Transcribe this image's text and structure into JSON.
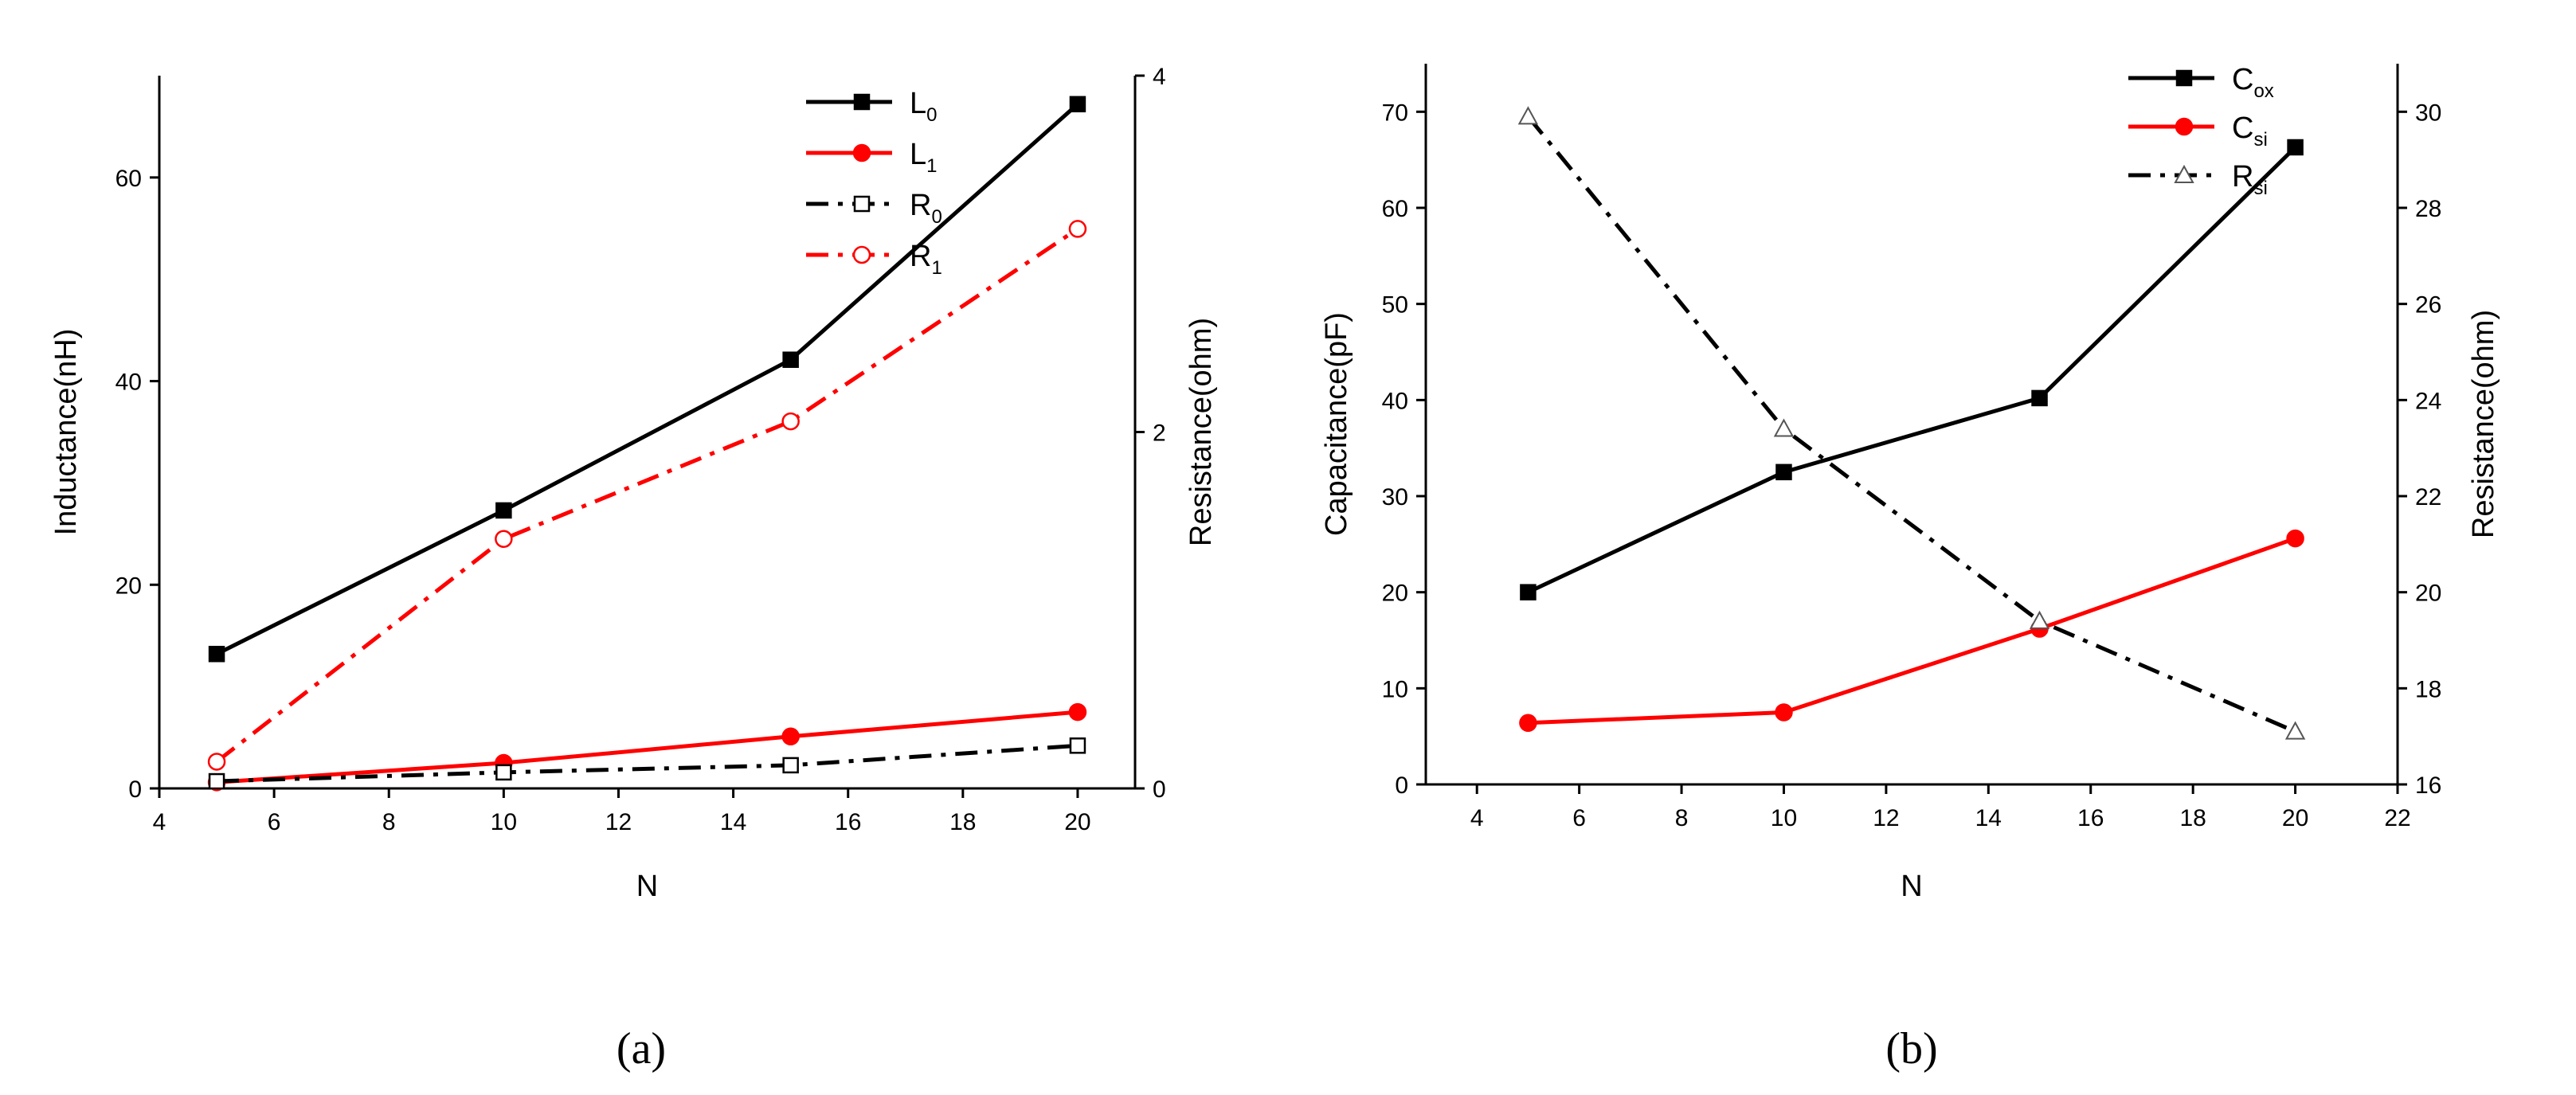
{
  "chart_data": [
    {
      "type": "line",
      "panel_label": "(a)",
      "xlabel": "N",
      "ylabel_left": "Inductance(nH)",
      "ylabel_right": "Resistance(ohm)",
      "xlim": [
        4,
        21
      ],
      "ylim_left": [
        0,
        70
      ],
      "ylim_right": [
        0,
        4
      ],
      "xticks": [
        4,
        6,
        8,
        10,
        12,
        14,
        16,
        18,
        20
      ],
      "yticks_left": [
        0,
        20,
        40,
        60
      ],
      "yticks_right": [
        0,
        2,
        4
      ],
      "x": [
        5,
        10,
        15,
        20
      ],
      "series": [
        {
          "name": "L",
          "sub": "0",
          "axis": "left",
          "color": "#000000",
          "dash": "solid",
          "marker": "square-filled",
          "values": [
            13.2,
            27.3,
            42.1,
            67.2
          ]
        },
        {
          "name": "L",
          "sub": "1",
          "axis": "left",
          "color": "#ff0000",
          "dash": "solid",
          "marker": "circle-filled",
          "values": [
            0.6,
            2.5,
            5.1,
            7.5
          ]
        },
        {
          "name": "R",
          "sub": "0",
          "axis": "right",
          "color": "#000000",
          "dash": "dashdot",
          "marker": "square-open",
          "values": [
            0.04,
            0.09,
            0.13,
            0.24
          ]
        },
        {
          "name": "R",
          "sub": "1",
          "axis": "right",
          "color": "#ff0000",
          "dash": "dashdot",
          "marker": "circle-open",
          "values": [
            0.15,
            1.4,
            2.06,
            3.14
          ]
        }
      ]
    },
    {
      "type": "line",
      "panel_label": "(b)",
      "xlabel": "N",
      "ylabel_left": "Capacitance(pF)",
      "ylabel_right": "Resistance(ohm)",
      "xlim": [
        3,
        22
      ],
      "ylim_left": [
        0,
        75
      ],
      "ylim_right": [
        16,
        31
      ],
      "xticks": [
        4,
        6,
        8,
        10,
        12,
        14,
        16,
        18,
        20,
        22
      ],
      "yticks_left": [
        0,
        10,
        20,
        30,
        40,
        50,
        60,
        70
      ],
      "yticks_right": [
        16,
        18,
        20,
        22,
        24,
        26,
        28,
        30
      ],
      "x": [
        5,
        10,
        15,
        20
      ],
      "series": [
        {
          "name": "C",
          "sub": "ox",
          "axis": "left",
          "color": "#000000",
          "dash": "solid",
          "marker": "square-filled",
          "values": [
            20,
            32.5,
            40.2,
            66.3
          ]
        },
        {
          "name": "C",
          "sub": "si",
          "axis": "left",
          "color": "#ff0000",
          "dash": "solid",
          "marker": "circle-filled",
          "values": [
            6.4,
            7.5,
            16.2,
            25.6
          ]
        },
        {
          "name": "R",
          "sub": "si",
          "axis": "right",
          "color": "#000000",
          "dash": "dashdot",
          "marker": "triangle-open",
          "values": [
            29.9,
            23.4,
            19.4,
            17.1
          ]
        }
      ]
    }
  ]
}
